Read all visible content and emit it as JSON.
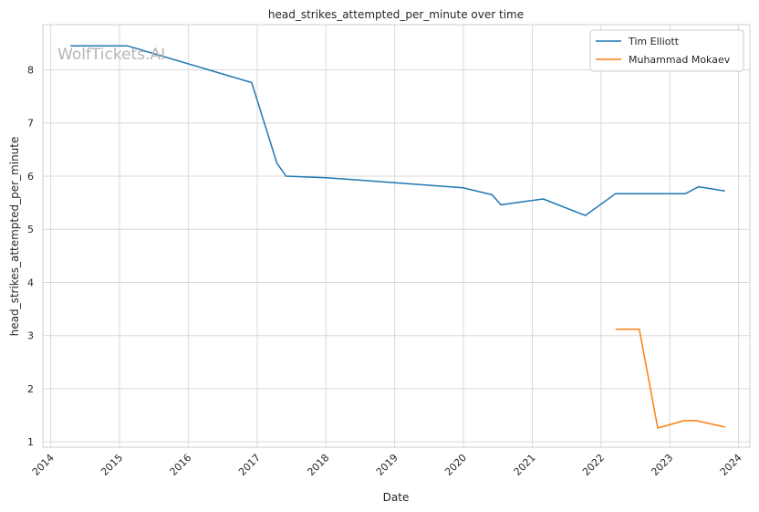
{
  "chart_data": {
    "type": "line",
    "title": "head_strikes_attempted_per_minute over time",
    "xlabel": "Date",
    "ylabel": "head_strikes_attempted_per_minute",
    "watermark": "WolfTickets.AI",
    "x_ticks": [
      "2014",
      "2015",
      "2016",
      "2017",
      "2018",
      "2019",
      "2020",
      "2021",
      "2022",
      "2023",
      "2024"
    ],
    "y_ticks": [
      1,
      2,
      3,
      4,
      5,
      6,
      7,
      8
    ],
    "xlim": [
      "2013-11-20",
      "2024-03-01"
    ],
    "ylim": [
      0.9,
      8.85
    ],
    "grid": true,
    "legend_position": "top-right",
    "colors": {
      "tim": "#1f77b4",
      "mokaev": "#ff7f0e",
      "grid": "#d9d9d9",
      "axis": "#cccccc"
    },
    "series": [
      {
        "name": "Tim Elliott",
        "color": "#1f77b4",
        "points": [
          [
            "2014-04-16",
            8.45
          ],
          [
            "2015-02-14",
            8.45
          ],
          [
            "2016-12-03",
            7.76
          ],
          [
            "2017-04-15",
            6.25
          ],
          [
            "2017-06-03",
            6.0
          ],
          [
            "2018-01-01",
            5.97
          ],
          [
            "2019-10-18",
            5.8
          ],
          [
            "2020-01-01",
            5.78
          ],
          [
            "2020-06-01",
            5.65
          ],
          [
            "2020-07-18",
            5.46
          ],
          [
            "2021-02-28",
            5.57
          ],
          [
            "2021-10-09",
            5.26
          ],
          [
            "2022-03-19",
            5.67
          ],
          [
            "2023-03-25",
            5.67
          ],
          [
            "2023-06-03",
            5.8
          ],
          [
            "2023-10-21",
            5.72
          ]
        ]
      },
      {
        "name": "Muhammad Mokaev",
        "color": "#ff7f0e",
        "points": [
          [
            "2022-03-19",
            3.12
          ],
          [
            "2022-07-23",
            3.12
          ],
          [
            "2022-10-29",
            1.26
          ],
          [
            "2023-03-18",
            1.4
          ],
          [
            "2023-05-20",
            1.4
          ],
          [
            "2023-10-21",
            1.28
          ]
        ]
      }
    ]
  }
}
